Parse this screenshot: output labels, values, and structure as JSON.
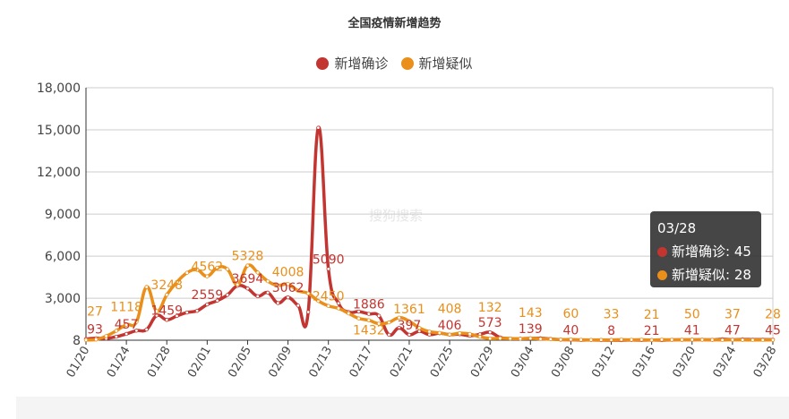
{
  "chart_data": {
    "type": "line",
    "title": "全国疫情新增趋势",
    "watermark": "搜狗搜索",
    "ylim": [
      8,
      18000
    ],
    "yticks": [
      "8",
      "3,000",
      "6,000",
      "9,000",
      "12,000",
      "15,000",
      "18,000"
    ],
    "ytick_values": [
      8,
      3000,
      6000,
      9000,
      12000,
      15000,
      18000
    ],
    "grid": true,
    "legend_position": "top-center",
    "x": [
      "01/20",
      "01/21",
      "01/22",
      "01/23",
      "01/24",
      "01/25",
      "01/26",
      "01/27",
      "01/28",
      "01/29",
      "01/30",
      "01/31",
      "02/01",
      "02/02",
      "02/03",
      "02/04",
      "02/05",
      "02/06",
      "02/07",
      "02/08",
      "02/09",
      "02/10",
      "02/11",
      "02/12",
      "02/13",
      "02/14",
      "02/15",
      "02/16",
      "02/17",
      "02/18",
      "02/19",
      "02/20",
      "02/21",
      "02/22",
      "02/23",
      "02/24",
      "02/25",
      "02/26",
      "02/27",
      "02/28",
      "02/29",
      "03/01",
      "03/02",
      "03/03",
      "03/04",
      "03/05",
      "03/06",
      "03/07",
      "03/08",
      "03/09",
      "03/10",
      "03/11",
      "03/12",
      "03/13",
      "03/14",
      "03/15",
      "03/16",
      "03/17",
      "03/18",
      "03/19",
      "03/20",
      "03/21",
      "03/22",
      "03/23",
      "03/24",
      "03/25",
      "03/26",
      "03/27",
      "03/28"
    ],
    "series": [
      {
        "name": "新增确诊",
        "color": "#c23531",
        "values": [
          93,
          149,
          131,
          259,
          457,
          688,
          769,
          1771,
          1459,
          1737,
          1982,
          2102,
          2559,
          2829,
          3235,
          3887,
          3694,
          3143,
          3399,
          2656,
          3062,
          2478,
          2015,
          15152,
          5090,
          2641,
          2009,
          2048,
          1886,
          1749,
          394,
          889,
          397,
          648,
          409,
          508,
          406,
          433,
          327,
          427,
          573,
          202,
          125,
          119,
          139,
          143,
          99,
          44,
          40,
          19,
          24,
          15,
          8,
          11,
          20,
          16,
          21,
          13,
          34,
          39,
          41,
          46,
          39,
          78,
          47,
          67,
          55,
          54,
          45
        ]
      },
      {
        "name": "新增疑似",
        "color": "#e98f1a",
        "values": [
          27,
          54,
          300,
          680,
          1118,
          1309,
          3806,
          2077,
          3248,
          4148,
          4812,
          5019,
          4562,
          5173,
          5072,
          3971,
          5328,
          4833,
          4214,
          3916,
          4008,
          3536,
          3342,
          2807,
          2450,
          2277,
          1918,
          1563,
          1432,
          1185,
          1277,
          1614,
          1361,
          882,
          620,
          530,
          408,
          508,
          452,
          248,
          132,
          141,
          129,
          118,
          143,
          102,
          83,
          58,
          60,
          36,
          31,
          33,
          33,
          45,
          39,
          45,
          21,
          45,
          39,
          42,
          50,
          40,
          34,
          25,
          37,
          29,
          25,
          26,
          28
        ]
      }
    ]
  },
  "tooltip": {
    "date": "03/28",
    "rows": [
      {
        "label": "新增确诊: 45"
      },
      {
        "label": "新增疑似: 28"
      }
    ]
  }
}
